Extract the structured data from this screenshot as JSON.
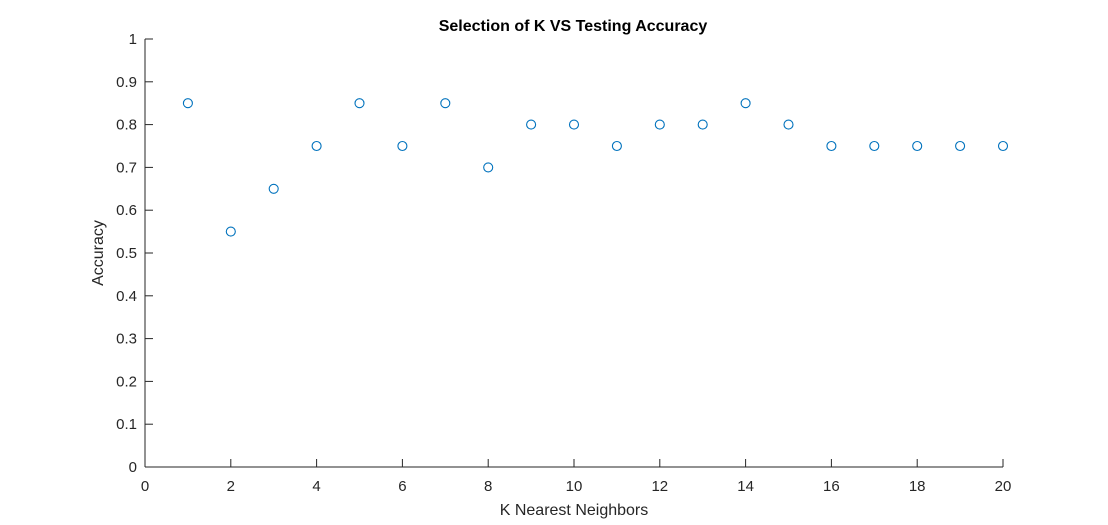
{
  "chart_data": {
    "type": "scatter",
    "title": "Selection of K VS Testing Accuracy",
    "xlabel": "K Nearest Neighbors",
    "ylabel": "Accuracy",
    "xlim": [
      0,
      20
    ],
    "ylim": [
      0,
      1
    ],
    "xticks": [
      0,
      2,
      4,
      6,
      8,
      10,
      12,
      14,
      16,
      18,
      20
    ],
    "xtick_labels": [
      "0",
      "2",
      "4",
      "6",
      "8",
      "10",
      "12",
      "14",
      "16",
      "18",
      "20"
    ],
    "yticks": [
      0,
      0.1,
      0.2,
      0.3,
      0.4,
      0.5,
      0.6,
      0.7,
      0.8,
      0.9,
      1
    ],
    "ytick_labels": [
      "0",
      "0.1",
      "0.2",
      "0.3",
      "0.4",
      "0.5",
      "0.6",
      "0.7",
      "0.8",
      "0.9",
      "1"
    ],
    "grid": false,
    "marker": "open-circle",
    "marker_color": "#0072BD",
    "series": [
      {
        "x": [
          1,
          2,
          3,
          4,
          5,
          6,
          7,
          8,
          9,
          10,
          11,
          12,
          13,
          14,
          15,
          16,
          17,
          18,
          19,
          20
        ],
        "y": [
          0.85,
          0.55,
          0.65,
          0.75,
          0.85,
          0.75,
          0.85,
          0.7,
          0.8,
          0.8,
          0.75,
          0.8,
          0.8,
          0.85,
          0.8,
          0.75,
          0.75,
          0.75,
          0.75,
          0.75
        ]
      }
    ]
  }
}
